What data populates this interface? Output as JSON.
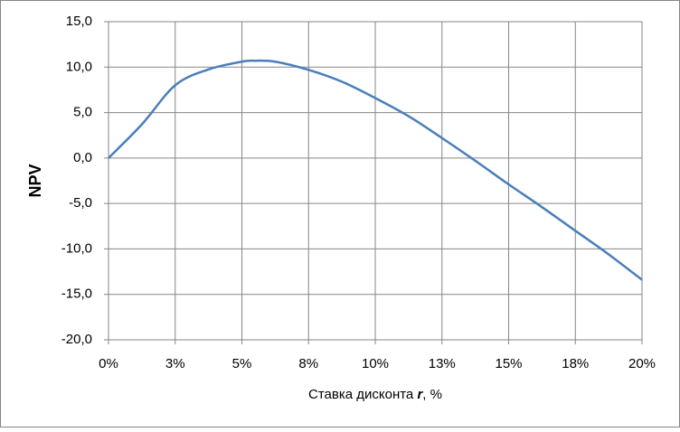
{
  "chart_data": {
    "type": "line",
    "y_label": "NPV",
    "x_label_parts": [
      "Ставка дисконта ",
      "r",
      ", %"
    ],
    "xlim": [
      0,
      20
    ],
    "xticks": [
      {
        "value": 0,
        "label": "0%"
      },
      {
        "value": 2.5,
        "label": "3%"
      },
      {
        "value": 5,
        "label": "5%"
      },
      {
        "value": 7.5,
        "label": "8%"
      },
      {
        "value": 10,
        "label": "10%"
      },
      {
        "value": 12.5,
        "label": "13%"
      },
      {
        "value": 15,
        "label": "15%"
      },
      {
        "value": 17.5,
        "label": "18%"
      },
      {
        "value": 20,
        "label": "20%"
      }
    ],
    "ylim": [
      -20,
      15
    ],
    "yticks": [
      {
        "value": -20,
        "label": "-20,0"
      },
      {
        "value": -15,
        "label": "-15,0"
      },
      {
        "value": -10,
        "label": "-10,0"
      },
      {
        "value": -5,
        "label": "-5,0"
      },
      {
        "value": 0,
        "label": "0,0"
      },
      {
        "value": 5,
        "label": "5,0"
      },
      {
        "value": 10,
        "label": "10,0"
      },
      {
        "value": 15,
        "label": "15,0"
      }
    ],
    "grid": true,
    "x": [
      0,
      1.25,
      2.5,
      3.75,
      5,
      5.5,
      6.25,
      7.5,
      8.75,
      10,
      11.25,
      12.5,
      13.75,
      15,
      16.25,
      17.5,
      18.75,
      20
    ],
    "series": [
      {
        "color": "#4a7ebb",
        "values": [
          0,
          3.7,
          8.0,
          9.75,
          10.6,
          10.7,
          10.6,
          9.7,
          8.4,
          6.6,
          4.6,
          2.2,
          -0.3,
          -2.9,
          -5.4,
          -8.0,
          -10.6,
          -13.4
        ]
      }
    ]
  }
}
